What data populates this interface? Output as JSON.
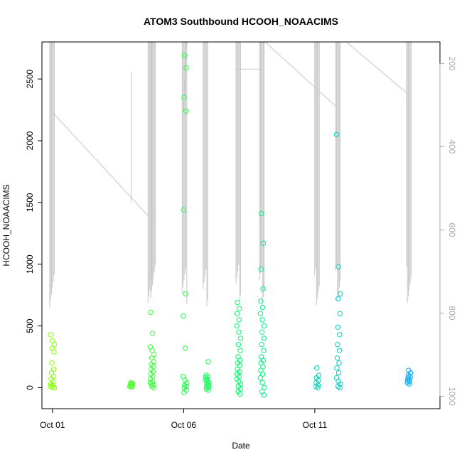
{
  "chart_data": {
    "type": "scatter",
    "title": "ATOM3 Southbound HCOOH_NOAACIMS",
    "xlabel": "Date",
    "ylabel": "HCOOH_NOAACIMS",
    "x_unit": "days in October",
    "xlim": [
      0.6,
      15.77
    ],
    "ylim": [
      -170,
      2800
    ],
    "x_ticks": [
      {
        "value": 1,
        "label": "Oct 01"
      },
      {
        "value": 6,
        "label": "Oct 06"
      },
      {
        "value": 11,
        "label": "Oct 11"
      }
    ],
    "y_ticks": [
      0,
      500,
      1000,
      1500,
      2000,
      2500
    ],
    "y2_label": "",
    "y2_ticks": [
      200,
      400,
      600,
      800,
      1000
    ],
    "y2_range": [
      148,
      1030
    ],
    "y2_inverted": true,
    "grid": false,
    "legend": "none",
    "point_color_scale": "latitude-style gradient: yellow-green (early) to green to cyan to sky blue (late)",
    "series": [
      {
        "role": "points",
        "color_scale_start": "#88ff00",
        "color_scale_end": "#00a8ff",
        "x": [
          1.0,
          1.0,
          1.0,
          1.0,
          1.0,
          1.0,
          1.0,
          1.0,
          1.0,
          1.0,
          1.0,
          1.0,
          1.0,
          1.0,
          1.0,
          1.0,
          4.0,
          4.0,
          4.0,
          4.0,
          4.0,
          4.0,
          4.0,
          4.0,
          4.8,
          4.8,
          4.8,
          4.8,
          4.8,
          4.8,
          4.8,
          4.8,
          4.8,
          4.8,
          4.8,
          4.8,
          4.8,
          4.8,
          4.8,
          4.8,
          4.8,
          4.8,
          4.8,
          4.8,
          6.05,
          6.05,
          6.05,
          6.05,
          6.05,
          6.05,
          6.05,
          6.05,
          6.05,
          6.05,
          6.05,
          6.05,
          6.05,
          6.05,
          6.05,
          6.05,
          6.9,
          6.9,
          6.9,
          6.9,
          6.9,
          6.9,
          6.9,
          6.9,
          6.9,
          6.9,
          6.9,
          6.9,
          6.9,
          6.9,
          8.1,
          8.1,
          8.1,
          8.1,
          8.1,
          8.1,
          8.1,
          8.1,
          8.1,
          8.1,
          8.1,
          8.1,
          8.1,
          8.1,
          8.1,
          8.1,
          8.1,
          8.1,
          8.1,
          8.1,
          8.1,
          8.1,
          8.1,
          8.1,
          9.0,
          9.0,
          9.0,
          9.0,
          9.0,
          9.0,
          9.0,
          9.0,
          9.0,
          9.0,
          9.0,
          9.0,
          9.0,
          9.0,
          9.0,
          9.0,
          9.0,
          9.0,
          9.0,
          9.0,
          9.0,
          9.0,
          9.0,
          9.0,
          11.1,
          11.1,
          11.1,
          11.1,
          11.1,
          11.1,
          11.1,
          11.1,
          11.9,
          11.9,
          11.9,
          11.9,
          11.9,
          11.9,
          11.9,
          11.9,
          11.9,
          11.9,
          11.9,
          11.9,
          11.9,
          11.9,
          11.9,
          11.9,
          11.9,
          11.9,
          14.6,
          14.6,
          14.6,
          14.6,
          14.6,
          14.6,
          14.6,
          14.6,
          14.6,
          14.6
        ],
        "y": [
          430,
          380,
          350,
          320,
          290,
          200,
          150,
          120,
          90,
          70,
          50,
          30,
          20,
          10,
          5,
          0,
          40,
          35,
          30,
          25,
          20,
          15,
          10,
          5,
          610,
          440,
          330,
          300,
          270,
          240,
          210,
          190,
          170,
          150,
          130,
          110,
          90,
          70,
          50,
          40,
          30,
          20,
          10,
          0,
          2690,
          2590,
          2350,
          2240,
          1440,
          760,
          580,
          320,
          90,
          60,
          40,
          20,
          10,
          0,
          -20,
          -40,
          210,
          100,
          90,
          80,
          70,
          60,
          50,
          40,
          30,
          20,
          10,
          0,
          -10,
          -20,
          690,
          640,
          600,
          550,
          500,
          450,
          400,
          350,
          300,
          250,
          220,
          200,
          180,
          150,
          130,
          110,
          90,
          70,
          50,
          30,
          10,
          -10,
          -30,
          -50,
          1410,
          1170,
          960,
          800,
          700,
          650,
          600,
          550,
          500,
          450,
          400,
          350,
          300,
          250,
          220,
          200,
          170,
          140,
          110,
          80,
          40,
          0,
          -30,
          -60,
          160,
          100,
          80,
          60,
          40,
          20,
          10,
          0,
          2050,
          980,
          760,
          720,
          600,
          490,
          430,
          350,
          300,
          240,
          200,
          160,
          120,
          80,
          50,
          30,
          10,
          0,
          140,
          120,
          100,
          90,
          80,
          70,
          60,
          50,
          40,
          30
        ]
      }
    ],
    "secondary_series": [
      {
        "role": "pressure_trace",
        "color": "#c8c8c8"
      }
    ]
  }
}
